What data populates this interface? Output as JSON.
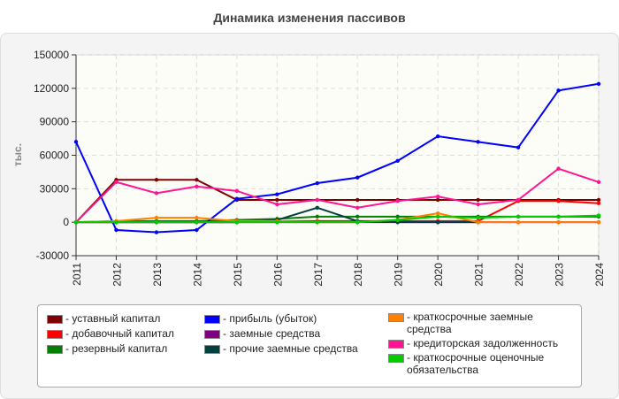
{
  "chart_data": {
    "type": "line",
    "title": "Динамика изменения пассивов",
    "ylabel": "тыс.",
    "xlabel": "",
    "ylim": [
      -30000,
      150000
    ],
    "yticks": [
      -30000,
      0,
      30000,
      60000,
      90000,
      120000,
      150000
    ],
    "grid": true,
    "legend_position": "bottom",
    "categories": [
      "2011",
      "2012",
      "2013",
      "2014",
      "2015",
      "2016",
      "2017",
      "2018",
      "2019",
      "2020",
      "2021",
      "2022",
      "2023",
      "2024"
    ],
    "series": [
      {
        "name": "- уставный капитал",
        "color": "#800000",
        "values": [
          0,
          38000,
          38000,
          38000,
          20000,
          20000,
          20000,
          20000,
          20000,
          20000,
          20000,
          20000,
          20000,
          20000
        ]
      },
      {
        "name": "- добавочный капитал",
        "color": "#ff0000",
        "values": [
          0,
          0,
          0,
          0,
          0,
          1000,
          1000,
          1000,
          1000,
          1000,
          1000,
          19000,
          19000,
          17000
        ]
      },
      {
        "name": "- резервный капитал",
        "color": "#008000",
        "values": [
          0,
          1000,
          1000,
          1000,
          2000,
          3000,
          5000,
          5000,
          5000,
          5000,
          5000,
          5000,
          5000,
          5000
        ]
      },
      {
        "name": "- прибыль (убыток)",
        "color": "#0000ff",
        "values": [
          72000,
          -7000,
          -9000,
          -7000,
          21000,
          25000,
          35000,
          40000,
          55000,
          77000,
          72000,
          67000,
          118000,
          124000
        ]
      },
      {
        "name": "- заемные средства",
        "color": "#800080",
        "values": [
          0,
          0,
          0,
          0,
          0,
          0,
          0,
          0,
          0,
          0,
          0,
          0,
          0,
          0
        ]
      },
      {
        "name": "- прочие заемные средства",
        "color": "#004040",
        "values": [
          0,
          0,
          0,
          0,
          0,
          2000,
          13000,
          1000,
          0,
          0,
          0,
          null,
          null,
          null
        ]
      },
      {
        "name": "- краткосрочные заемные средства",
        "color": "#ff8000",
        "values": [
          0,
          1000,
          4000,
          4000,
          1000,
          1000,
          0,
          0,
          2000,
          8000,
          0,
          0,
          0,
          0
        ]
      },
      {
        "name": "- кредиторская задолженность",
        "color": "#ff1493",
        "values": [
          0,
          36000,
          26000,
          32000,
          28000,
          16000,
          20000,
          13000,
          19000,
          23000,
          16000,
          20000,
          48000,
          36000
        ]
      },
      {
        "name": "- краткосрочные оценочные обязательства",
        "color": "#00cc00",
        "values": [
          0,
          0,
          0,
          0,
          0,
          0,
          0,
          0,
          2000,
          5000,
          4000,
          5000,
          5000,
          6000
        ]
      }
    ]
  }
}
